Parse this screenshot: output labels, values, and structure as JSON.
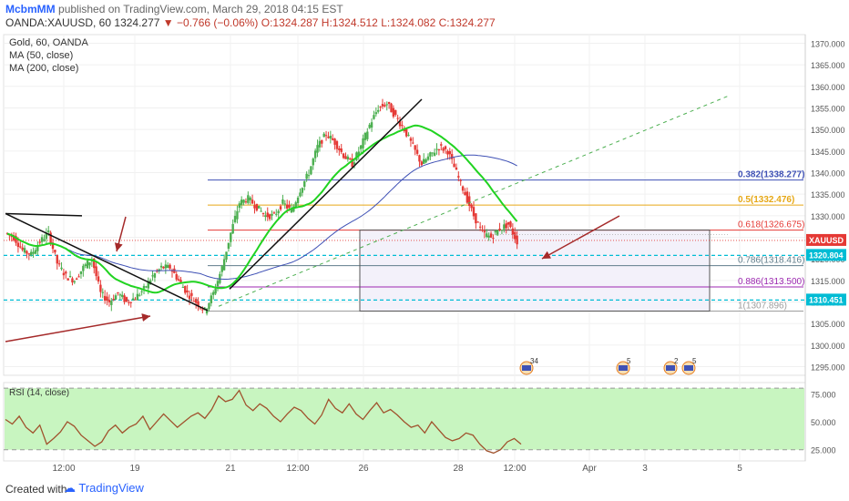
{
  "header": {
    "author": "McbmMM",
    "published": "published on TradingView.com, March 29, 2018 04:15 EST",
    "symbol": "OANDA:XAUUSD, 60",
    "last": "1324.277",
    "change": "▼ −0.766 (−0.06%)",
    "ohlc": "O:1324.287 H:1324.512 L:1324.082 C:1324.277"
  },
  "legend": {
    "title": "Gold, 60, OANDA",
    "ma50": "MA (50, close)",
    "ma200": "MA (200, close)"
  },
  "rsi_label": "RSI (14, close)",
  "footer": {
    "credit": "Created with",
    "brand": "TradingView"
  },
  "colors": {
    "candle_up": "#4caf50",
    "candle_down": "#e53935",
    "ma50": "#21d321",
    "ma200": "#3f51b5",
    "rsi_line": "#a0522d",
    "rsi_band": "#c8f5c0",
    "cyan": "#00bcd4",
    "arrow": "#a52a2a"
  },
  "chart_data": [
    {
      "type": "candlestick",
      "symbol": "XAUUSD",
      "ylim": [
        1293,
        1372
      ],
      "y_ticks": [
        "1370.000",
        "1365.000",
        "1360.000",
        "1355.000",
        "1350.000",
        "1345.000",
        "1340.000",
        "1335.000",
        "1330.000",
        "1325.000",
        "1320.000",
        "1315.000",
        "1310.000",
        "1305.000",
        "1300.000",
        "1295.000"
      ],
      "x_ticks": [
        "12:00",
        "19",
        "21",
        "12:00",
        "26",
        "28",
        "12:00",
        "Apr",
        "3",
        "5"
      ],
      "close_path": [
        1326,
        1325,
        1322,
        1321,
        1324,
        1326,
        1319,
        1316,
        1315,
        1318,
        1320,
        1312,
        1310,
        1312,
        1310,
        1311,
        1313,
        1316,
        1318,
        1318,
        1315,
        1312,
        1310,
        1308,
        1312,
        1318,
        1326,
        1333,
        1334,
        1332,
        1330,
        1330,
        1333,
        1331,
        1336,
        1340,
        1346,
        1349,
        1347,
        1344,
        1342,
        1346,
        1351,
        1355,
        1356,
        1353,
        1350,
        1346,
        1342,
        1344,
        1346,
        1345,
        1340,
        1335,
        1330,
        1326,
        1325,
        1327,
        1328,
        1324
      ],
      "fib_levels": [
        {
          "label": "0.382(1338.277)",
          "value": 1338.277,
          "color": "#3f51b5"
        },
        {
          "label": "0.5(1332.476)",
          "value": 1332.476,
          "color": "#e6a817"
        },
        {
          "label": "0.618(1326.675)",
          "value": 1326.675,
          "color": "#e53935"
        },
        {
          "label": "0.786(1318.416)",
          "value": 1318.416,
          "color": "#607d8b"
        },
        {
          "label": "0.886(1313.500)",
          "value": 1313.5,
          "color": "#9c27b0"
        },
        {
          "label": "1(1307.896)",
          "value": 1307.896,
          "color": "#9e9e9e"
        }
      ],
      "price_tags": [
        {
          "label": "XAUUSD",
          "value": 1324.277,
          "color": "#e53935"
        },
        {
          "label": "1320.804",
          "value": 1320.804,
          "color": "#00bcd4"
        },
        {
          "label": "1310.451",
          "value": 1310.451,
          "color": "#00bcd4"
        }
      ],
      "hlines": [
        1320.804,
        1310.451
      ],
      "event_badges": [
        "34",
        "5",
        "2",
        "5"
      ]
    },
    {
      "type": "line",
      "title": "RSI (14, close)",
      "ylim": [
        15,
        85
      ],
      "y_ticks": [
        "75.000",
        "50.000",
        "25.000"
      ],
      "band": [
        25,
        80
      ],
      "values": [
        52,
        48,
        55,
        45,
        40,
        47,
        30,
        35,
        41,
        50,
        46,
        38,
        33,
        28,
        32,
        42,
        47,
        40,
        45,
        48,
        55,
        43,
        50,
        57,
        51,
        45,
        50,
        55,
        58,
        53,
        61,
        73,
        68,
        70,
        78,
        65,
        60,
        66,
        62,
        55,
        50,
        57,
        63,
        60,
        53,
        48,
        56,
        70,
        62,
        58,
        66,
        57,
        52,
        60,
        67,
        58,
        61,
        56,
        50,
        45,
        47,
        40,
        50,
        43,
        36,
        33,
        35,
        40,
        38,
        30,
        24,
        22,
        25,
        32,
        35,
        30
      ]
    }
  ]
}
